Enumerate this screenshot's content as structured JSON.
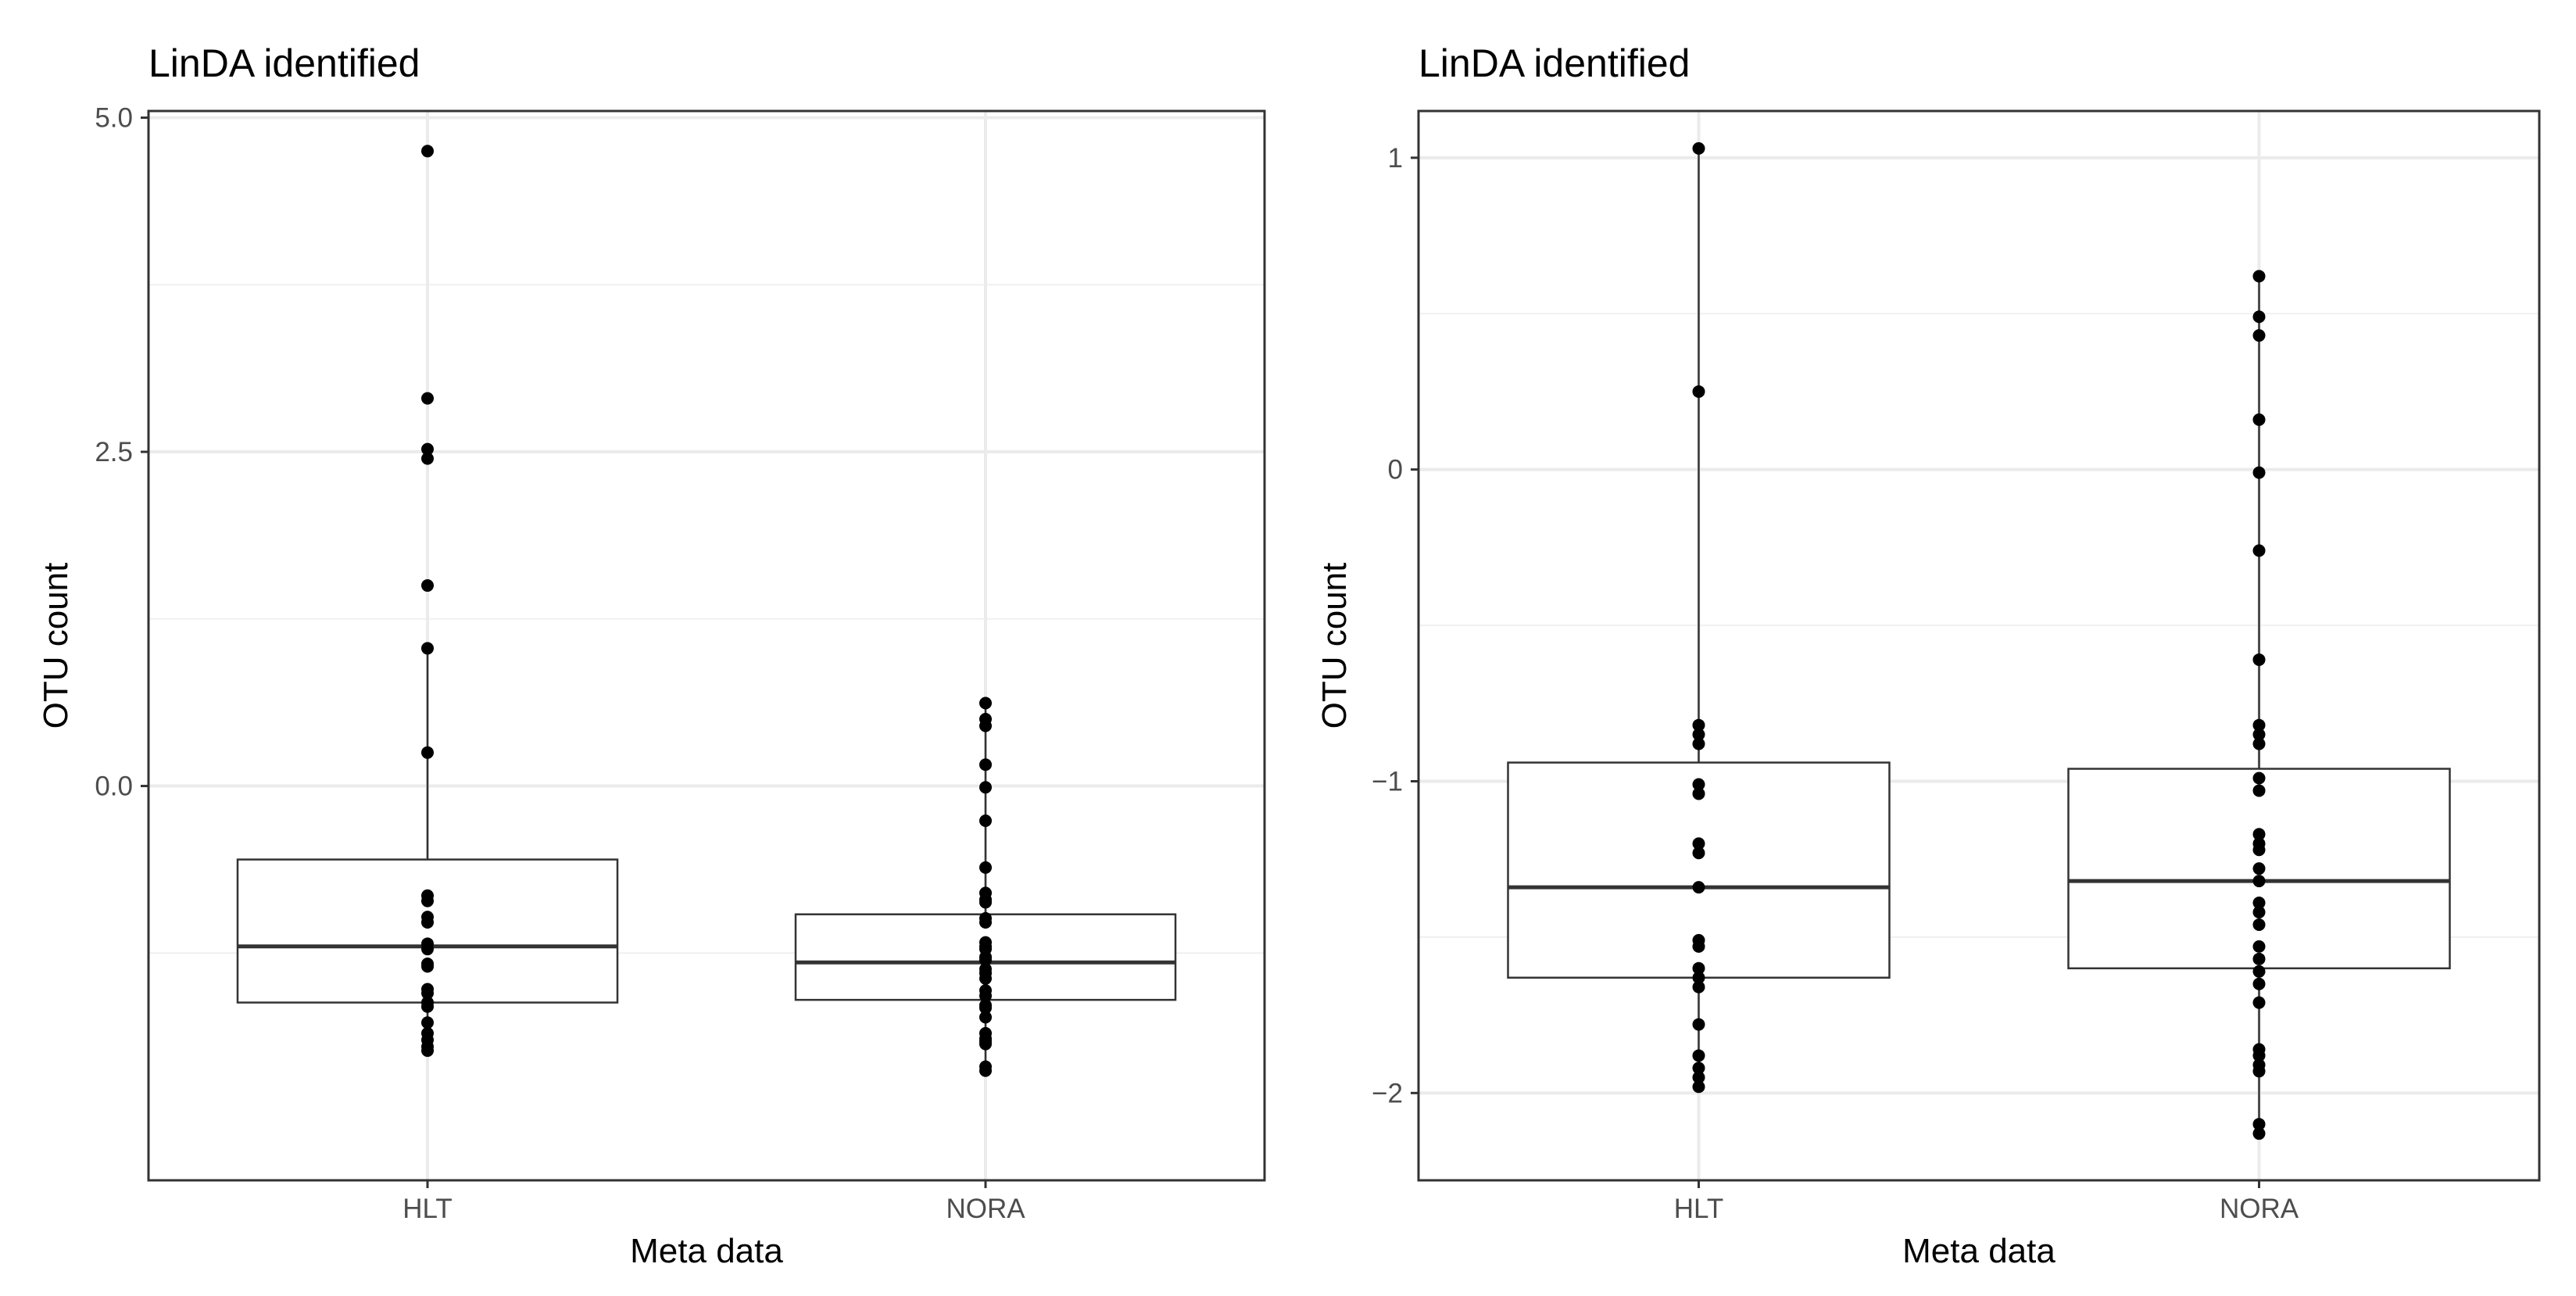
{
  "chart_data": [
    {
      "type": "boxplot",
      "title": "LinDA identified",
      "xlabel": "Meta data",
      "ylabel": "OTU count",
      "categories": [
        "HLT",
        "NORA"
      ],
      "ylim": [
        -2.95,
        5.05
      ],
      "yticks": [
        5.0,
        2.5,
        0.0
      ],
      "ytick_labels": [
        "5.0",
        "2.5",
        "0.0"
      ],
      "y_minor_gridlines": [
        3.75,
        1.25,
        -1.25
      ],
      "grid": true,
      "series": [
        {
          "name": "HLT",
          "box": {
            "q1": -1.62,
            "median": -1.2,
            "q3": -0.55,
            "whisker_low": -2.0,
            "whisker_high": 1.03
          },
          "points": [
            4.75,
            2.9,
            2.52,
            2.45,
            1.5,
            1.03,
            0.25,
            -0.82,
            -0.86,
            -0.98,
            -1.02,
            -1.18,
            -1.22,
            -1.33,
            -1.35,
            -1.52,
            -1.55,
            -1.62,
            -1.65,
            -1.77,
            -1.85,
            -1.9,
            -1.95,
            -1.98
          ]
        },
        {
          "name": "NORA",
          "box": {
            "q1": -1.6,
            "median": -1.32,
            "q3": -0.96,
            "whisker_low": -2.13,
            "whisker_high": 0.62
          },
          "points": [
            0.62,
            0.5,
            0.45,
            0.16,
            -0.01,
            -0.26,
            -0.61,
            -0.8,
            -0.85,
            -0.87,
            -0.99,
            -1.02,
            -1.17,
            -1.2,
            -1.22,
            -1.28,
            -1.3,
            -1.37,
            -1.4,
            -1.44,
            -1.53,
            -1.57,
            -1.64,
            -1.66,
            -1.73,
            -1.85,
            -1.89,
            -1.91,
            -1.93,
            -2.1,
            -2.13
          ]
        }
      ]
    },
    {
      "type": "boxplot",
      "title": "LinDA identified",
      "xlabel": "Meta data",
      "ylabel": "OTU count",
      "categories": [
        "HLT",
        "NORA"
      ],
      "ylim": [
        -2.28,
        1.15
      ],
      "yticks": [
        1,
        0,
        -1,
        -2
      ],
      "ytick_labels": [
        "1",
        "0",
        "−1",
        "−2"
      ],
      "y_minor_gridlines": [
        0.5,
        -0.5,
        -1.5
      ],
      "grid": true,
      "series": [
        {
          "name": "HLT",
          "box": {
            "q1": -1.63,
            "median": -1.34,
            "q3": -0.94,
            "whisker_low": -1.98,
            "whisker_high": 1.03
          },
          "points": [
            1.03,
            0.25,
            -0.82,
            -0.85,
            -0.88,
            -1.01,
            -1.04,
            -1.2,
            -1.23,
            -1.34,
            -1.51,
            -1.53,
            -1.6,
            -1.63,
            -1.66,
            -1.78,
            -1.88,
            -1.92,
            -1.95,
            -1.98
          ]
        },
        {
          "name": "NORA",
          "box": {
            "q1": -1.6,
            "median": -1.32,
            "q3": -0.96,
            "whisker_low": -2.13,
            "whisker_high": 0.62
          },
          "points": [
            0.62,
            0.49,
            0.43,
            0.16,
            -0.01,
            -0.26,
            -0.61,
            -0.82,
            -0.85,
            -0.88,
            -0.99,
            -1.03,
            -1.17,
            -1.2,
            -1.22,
            -1.28,
            -1.32,
            -1.39,
            -1.42,
            -1.46,
            -1.53,
            -1.57,
            -1.61,
            -1.65,
            -1.71,
            -1.86,
            -1.88,
            -1.91,
            -1.93,
            -2.1,
            -2.13
          ]
        }
      ]
    }
  ]
}
